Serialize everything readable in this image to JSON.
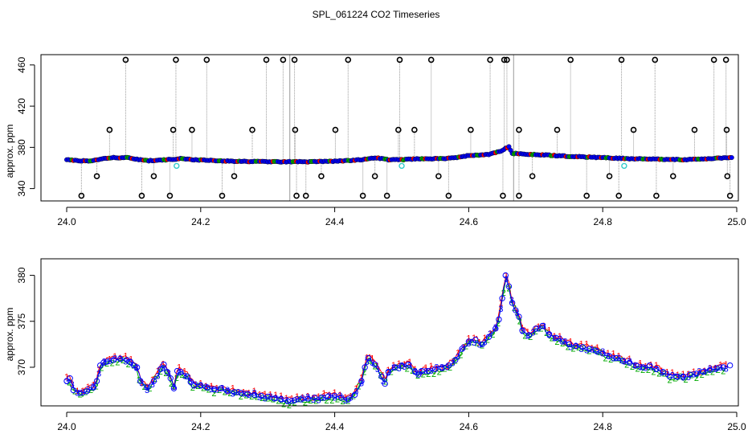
{
  "title": "SPL_061224  CO2 Timeseries",
  "colors": {
    "raw_open": "#000000",
    "raw_fill": "#0000ff",
    "overlay_a": "#ff0000",
    "overlay_b": "#00aa00",
    "calib": "#33cccc",
    "trace": "#999999",
    "frame": "#000000"
  },
  "chart_data": [
    {
      "type": "scatter",
      "name": "full-range",
      "title": "",
      "xlabel": "",
      "ylabel": "approx. ppm",
      "xlim": [
        24.0,
        25.0
      ],
      "ylim": [
        328,
        470
      ],
      "x_ticks": [
        24.0,
        24.2,
        24.4,
        24.6,
        24.8,
        25.0
      ],
      "x_tick_labels": [
        "24.0",
        "24.2",
        "24.4",
        "24.6",
        "24.8",
        "25.0"
      ],
      "y_ticks": [
        340,
        380,
        420,
        460
      ],
      "y_tick_labels": [
        "340",
        "380",
        "420",
        "460"
      ],
      "baseline": [
        [
          24.0,
          368
        ],
        [
          24.02,
          367
        ],
        [
          24.04,
          367
        ],
        [
          24.05,
          368.5
        ],
        [
          24.07,
          370
        ],
        [
          24.09,
          370
        ],
        [
          24.1,
          369
        ],
        [
          24.12,
          367
        ],
        [
          24.15,
          368
        ],
        [
          24.17,
          369
        ],
        [
          24.19,
          368
        ],
        [
          24.21,
          367.5
        ],
        [
          24.25,
          366.5
        ],
        [
          24.3,
          366
        ],
        [
          24.33,
          366
        ],
        [
          24.36,
          366
        ],
        [
          24.4,
          366.5
        ],
        [
          24.44,
          368
        ],
        [
          24.46,
          370
        ],
        [
          24.48,
          368
        ],
        [
          24.49,
          368
        ],
        [
          24.5,
          368
        ],
        [
          24.53,
          369
        ],
        [
          24.56,
          369
        ],
        [
          24.58,
          370
        ],
        [
          24.6,
          372
        ],
        [
          24.63,
          373
        ],
        [
          24.65,
          377
        ],
        [
          24.66,
          381
        ],
        [
          24.665,
          374
        ],
        [
          24.67,
          374
        ],
        [
          24.7,
          373
        ],
        [
          24.73,
          372
        ],
        [
          24.76,
          371
        ],
        [
          24.8,
          370
        ],
        [
          24.84,
          369
        ],
        [
          24.88,
          368.5
        ],
        [
          24.92,
          368
        ],
        [
          24.96,
          369
        ],
        [
          24.99,
          370
        ]
      ],
      "spikes_high": [
        24.088,
        24.163,
        24.209,
        24.298,
        24.323,
        24.34,
        24.42,
        24.497,
        24.544,
        24.632,
        24.653,
        24.657,
        24.752,
        24.828,
        24.878,
        24.966,
        24.984
      ],
      "spikes_mid": [
        24.064,
        24.159,
        24.187,
        24.277,
        24.341,
        24.401,
        24.495,
        24.519,
        24.603,
        24.675,
        24.732,
        24.846,
        24.937,
        24.985
      ],
      "spikes_low": [
        24.022,
        24.112,
        24.154,
        24.232,
        24.343,
        24.357,
        24.442,
        24.478,
        24.57,
        24.651,
        24.675,
        24.776,
        24.824,
        24.88,
        24.99
      ],
      "dip_a": [
        24.045,
        24.13,
        24.25,
        24.38,
        24.46,
        24.555,
        24.695,
        24.81,
        24.905,
        24.986
      ],
      "calib_points": [
        [
          24.164,
          362
        ],
        [
          24.5,
          362
        ],
        [
          24.832,
          362
        ]
      ],
      "gap_lines": [
        24.333,
        24.667
      ]
    },
    {
      "type": "line",
      "name": "zoomed-series",
      "title": "",
      "xlabel": "",
      "ylabel": "approx. ppm",
      "xlim": [
        24.0,
        25.0
      ],
      "ylim": [
        365.8,
        381.8
      ],
      "x_ticks": [
        24.0,
        24.2,
        24.4,
        24.6,
        24.8,
        25.0
      ],
      "x_tick_labels": [
        "24.0",
        "24.2",
        "24.4",
        "24.6",
        "24.8",
        "25.0"
      ],
      "y_ticks": [
        370,
        375,
        380
      ],
      "y_tick_labels": [
        "370",
        "375",
        "380"
      ],
      "series": [
        {
          "name": "1",
          "marker": "1",
          "color": "#ff0000",
          "offset": 0.25
        },
        {
          "name": "2",
          "marker": "2",
          "color": "#00aa00",
          "offset": -0.2
        },
        {
          "name": "3",
          "marker": "3",
          "color": "#0000ff",
          "offset": 0.0
        }
      ],
      "x": [
        24.0,
        24.005,
        24.01,
        24.02,
        24.03,
        24.04,
        24.045,
        24.05,
        24.055,
        24.06,
        24.07,
        24.08,
        24.09,
        24.095,
        24.1,
        24.105,
        24.11,
        24.12,
        24.13,
        24.14,
        24.145,
        24.15,
        24.155,
        24.16,
        24.165,
        24.17,
        24.18,
        24.185,
        24.19,
        24.2,
        24.21,
        24.22,
        24.23,
        24.24,
        24.25,
        24.26,
        24.27,
        24.28,
        24.29,
        24.3,
        24.31,
        24.32,
        24.33,
        24.34,
        24.35,
        24.36,
        24.37,
        24.38,
        24.39,
        24.4,
        24.41,
        24.42,
        24.43,
        24.44,
        24.445,
        24.45,
        24.46,
        24.47,
        24.475,
        24.48,
        24.49,
        24.5,
        24.51,
        24.52,
        24.525,
        24.53,
        24.54,
        24.55,
        24.56,
        24.57,
        24.58,
        24.59,
        24.6,
        24.61,
        24.62,
        24.63,
        24.64,
        24.645,
        24.65,
        24.655,
        24.66,
        24.665,
        24.67,
        24.675,
        24.68,
        24.69,
        24.7,
        24.71,
        24.72,
        24.73,
        24.74,
        24.75,
        24.76,
        24.77,
        24.78,
        24.79,
        24.8,
        24.81,
        24.82,
        24.83,
        24.84,
        24.85,
        24.86,
        24.87,
        24.88,
        24.89,
        24.9,
        24.91,
        24.92,
        24.93,
        24.94,
        24.95,
        24.96,
        24.97,
        24.98,
        24.99
      ],
      "values": [
        368.5,
        368.8,
        367.5,
        367.2,
        367.4,
        367.8,
        368.5,
        370.2,
        370.5,
        370.6,
        370.8,
        370.9,
        370.8,
        370.6,
        370.2,
        370.0,
        368.5,
        367.8,
        368.5,
        369.8,
        370.3,
        369.5,
        368.8,
        367.7,
        369.6,
        369.5,
        369.0,
        368.4,
        368.0,
        368.0,
        367.8,
        367.6,
        367.7,
        367.4,
        367.3,
        367.2,
        367.1,
        367.0,
        366.9,
        366.8,
        366.6,
        366.5,
        366.3,
        366.4,
        366.5,
        366.6,
        366.7,
        366.7,
        366.8,
        366.9,
        366.7,
        366.5,
        367.0,
        368.5,
        370.0,
        371.0,
        370.3,
        369.0,
        368.2,
        369.5,
        370.0,
        370.2,
        370.3,
        369.5,
        369.2,
        369.6,
        369.6,
        369.8,
        369.9,
        370.2,
        370.8,
        372.0,
        372.8,
        373.0,
        372.5,
        373.3,
        374.2,
        375.2,
        377.5,
        380.0,
        378.8,
        377.0,
        376.2,
        375.5,
        374.0,
        373.5,
        374.2,
        374.5,
        373.6,
        373.2,
        372.8,
        372.5,
        372.3,
        372.2,
        372.0,
        371.8,
        371.5,
        371.2,
        371.0,
        370.7,
        370.5,
        370.2,
        370.0,
        370.2,
        369.8,
        369.5,
        369.0,
        369.0,
        369.0,
        369.2,
        369.3,
        369.5,
        369.7,
        369.9,
        370.0,
        370.2
      ]
    }
  ]
}
